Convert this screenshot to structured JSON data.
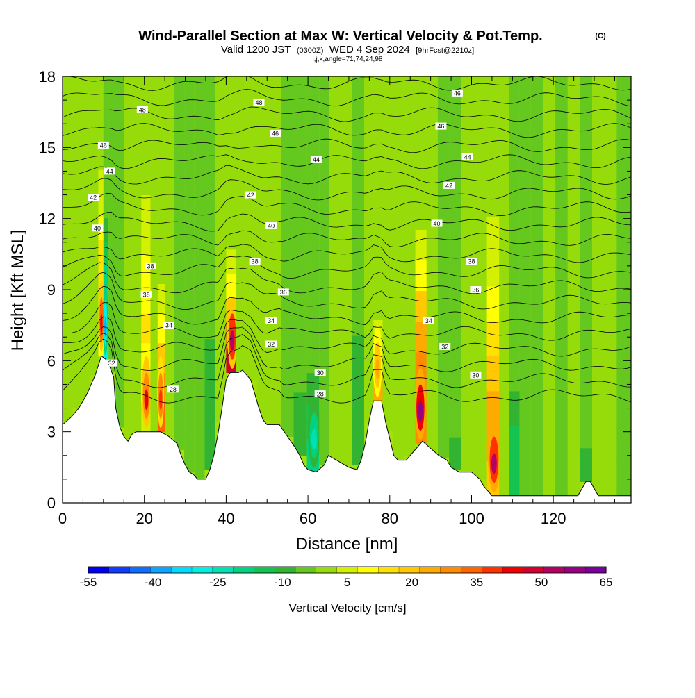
{
  "chart_data": {
    "type": "heatmap",
    "title": "Wind-Parallel Section at Max W: Vertical Velocity & Pot.Temp.",
    "title_mark": "(C)",
    "subtitle": {
      "valid": "Valid 1200 JST",
      "utc": "(0300Z)",
      "date": "WED 4 Sep 2024",
      "forecast": "[9hrFcst@2210z]"
    },
    "info": "i,j,k,angle=71,74,24,98",
    "xlabel": "Distance [nm]",
    "ylabel": "Height [Kft MSL]",
    "xlim": [
      0,
      139
    ],
    "ylim": [
      0,
      18
    ],
    "x_ticks": [
      0,
      20,
      40,
      60,
      80,
      100,
      120
    ],
    "y_ticks": [
      0,
      3,
      6,
      9,
      12,
      15,
      18
    ],
    "grid": false,
    "colorbar": {
      "label": "Vertical Velocity [cm/s]",
      "tick_labels": [
        "-55",
        "-40",
        "-25",
        "-10",
        "5",
        "20",
        "35",
        "50",
        "65"
      ],
      "levels": [
        -55,
        -50,
        -45,
        -40,
        -35,
        -30,
        -25,
        -20,
        -15,
        -10,
        -5,
        0,
        5,
        10,
        15,
        20,
        25,
        30,
        35,
        40,
        45,
        50,
        55,
        60,
        65
      ],
      "colors": [
        "#0000f0",
        "#0f3cff",
        "#0f6eff",
        "#0aa5ff",
        "#00dcff",
        "#00f0e1",
        "#00e1b4",
        "#00d282",
        "#14c350",
        "#32b432",
        "#64c81e",
        "#96dc0a",
        "#d2f000",
        "#ffff00",
        "#ffe100",
        "#ffc800",
        "#ffaa00",
        "#ff8c00",
        "#ff6400",
        "#ff3200",
        "#f00000",
        "#d20032",
        "#b40064",
        "#960082",
        "#78009b"
      ]
    },
    "w_columns": [
      {
        "x": 1,
        "w": 3
      },
      {
        "x": 4,
        "w": 3.5
      },
      {
        "x": 5.5,
        "w": 0
      },
      {
        "x": 8,
        "w": 9
      },
      {
        "x": 9.5,
        "w": 48
      },
      {
        "x": 10.5,
        "w": -38
      },
      {
        "x": 12,
        "w": -5
      },
      {
        "x": 14,
        "w": -2
      },
      {
        "x": 16,
        "w": 4
      },
      {
        "x": 18,
        "w": 2
      },
      {
        "x": 20.5,
        "w": 45
      },
      {
        "x": 22.5,
        "w": 6
      },
      {
        "x": 24,
        "w": 40
      },
      {
        "x": 26,
        "w": 0
      },
      {
        "x": 28.5,
        "w": -5
      },
      {
        "x": 31,
        "w": -15
      },
      {
        "x": 33.5,
        "w": -5
      },
      {
        "x": 36,
        "w": -12
      },
      {
        "x": 38.5,
        "w": 2
      },
      {
        "x": 41.5,
        "w": 55
      },
      {
        "x": 43.5,
        "w": 6
      },
      {
        "x": 46,
        "w": 3
      },
      {
        "x": 49,
        "w": 0
      },
      {
        "x": 52,
        "w": 4
      },
      {
        "x": 55,
        "w": -3
      },
      {
        "x": 58,
        "w": -8
      },
      {
        "x": 61.5,
        "w": -22
      },
      {
        "x": 64,
        "w": -5
      },
      {
        "x": 66.5,
        "w": 6
      },
      {
        "x": 69,
        "w": 10
      },
      {
        "x": 72.5,
        "w": -12
      },
      {
        "x": 75,
        "w": 5
      },
      {
        "x": 77,
        "w": 28
      },
      {
        "x": 79.5,
        "w": 4
      },
      {
        "x": 82,
        "w": 2
      },
      {
        "x": 85,
        "w": 12
      },
      {
        "x": 87.5,
        "w": 62
      },
      {
        "x": 90.5,
        "w": 0
      },
      {
        "x": 93,
        "w": -4
      },
      {
        "x": 96,
        "w": -8
      },
      {
        "x": 99,
        "w": 6
      },
      {
        "x": 102,
        "w": 0
      },
      {
        "x": 105.5,
        "w": 58
      },
      {
        "x": 108,
        "w": 4
      },
      {
        "x": 110.5,
        "w": -14
      },
      {
        "x": 113,
        "w": -3
      },
      {
        "x": 116,
        "w": -8
      },
      {
        "x": 119,
        "w": 2
      },
      {
        "x": 122,
        "w": -2
      },
      {
        "x": 125,
        "w": 3
      },
      {
        "x": 128,
        "w": -6
      },
      {
        "x": 131,
        "w": 0
      },
      {
        "x": 134,
        "w": 5
      },
      {
        "x": 137,
        "w": -3
      }
    ],
    "terrain": [
      [
        0,
        3.3
      ],
      [
        2,
        3.6
      ],
      [
        4,
        4.0
      ],
      [
        6,
        4.6
      ],
      [
        8,
        5.4
      ],
      [
        9.5,
        6.2
      ],
      [
        11,
        6.0
      ],
      [
        12.5,
        5.3
      ],
      [
        13,
        4.0
      ],
      [
        14,
        3.2
      ],
      [
        15,
        2.8
      ],
      [
        16,
        2.6
      ],
      [
        17,
        2.9
      ],
      [
        18,
        3.0
      ],
      [
        20,
        3.0
      ],
      [
        22,
        3.0
      ],
      [
        24,
        3.0
      ],
      [
        26,
        2.8
      ],
      [
        28,
        2.5
      ],
      [
        29,
        2.0
      ],
      [
        30,
        1.6
      ],
      [
        31,
        1.3
      ],
      [
        32,
        1.2
      ],
      [
        33,
        1.0
      ],
      [
        35,
        1.0
      ],
      [
        36,
        1.4
      ],
      [
        37,
        2.0
      ],
      [
        38,
        2.9
      ],
      [
        39,
        4.0
      ],
      [
        40,
        5.2
      ],
      [
        41,
        5.5
      ],
      [
        43,
        5.5
      ],
      [
        44,
        5.6
      ],
      [
        46,
        5.2
      ],
      [
        47,
        4.6
      ],
      [
        48,
        4.0
      ],
      [
        49,
        3.5
      ],
      [
        50,
        3.3
      ],
      [
        53,
        3.3
      ],
      [
        55,
        2.8
      ],
      [
        57,
        2.3
      ],
      [
        58,
        2.0
      ],
      [
        59,
        1.6
      ],
      [
        60,
        1.4
      ],
      [
        62,
        1.3
      ],
      [
        64,
        1.6
      ],
      [
        65,
        2.0
      ],
      [
        67,
        1.8
      ],
      [
        69,
        1.6
      ],
      [
        70,
        1.5
      ],
      [
        72,
        1.4
      ],
      [
        73,
        1.8
      ],
      [
        74,
        2.5
      ],
      [
        75,
        3.5
      ],
      [
        76,
        4.3
      ],
      [
        78,
        4.3
      ],
      [
        79,
        3.4
      ],
      [
        80,
        2.7
      ],
      [
        81,
        2.0
      ],
      [
        82,
        1.8
      ],
      [
        84,
        1.8
      ],
      [
        86,
        2.2
      ],
      [
        88,
        2.6
      ],
      [
        90,
        2.3
      ],
      [
        92,
        2.0
      ],
      [
        94,
        1.8
      ],
      [
        95,
        1.5
      ],
      [
        97,
        1.3
      ],
      [
        100,
        1.3
      ],
      [
        102,
        1.0
      ],
      [
        103,
        0.7
      ],
      [
        104,
        0.5
      ],
      [
        105,
        0.3
      ],
      [
        126,
        0.3
      ],
      [
        127,
        0.6
      ],
      [
        128,
        0.9
      ],
      [
        129,
        0.9
      ],
      [
        131,
        0.3
      ],
      [
        133,
        0.3
      ],
      [
        136,
        0.3
      ],
      [
        139,
        0.3
      ]
    ],
    "theta_contours": {
      "levels": [
        28,
        29,
        30,
        31,
        32,
        33,
        34,
        35,
        36,
        37,
        38,
        39,
        40,
        41,
        42,
        43,
        44,
        45,
        46,
        47,
        48
      ],
      "labels": [
        {
          "x": 27,
          "y": 4.8,
          "text": "28"
        },
        {
          "x": 63,
          "y": 4.6,
          "text": "28"
        },
        {
          "x": 12,
          "y": 5.9,
          "text": "32"
        },
        {
          "x": 51,
          "y": 6.7,
          "text": "32"
        },
        {
          "x": 93.5,
          "y": 6.6,
          "text": "32"
        },
        {
          "x": 63,
          "y": 5.5,
          "text": "30"
        },
        {
          "x": 101,
          "y": 5.4,
          "text": "30"
        },
        {
          "x": 26,
          "y": 7.5,
          "text": "34"
        },
        {
          "x": 51,
          "y": 7.7,
          "text": "34"
        },
        {
          "x": 89.5,
          "y": 7.7,
          "text": "34"
        },
        {
          "x": 20.5,
          "y": 8.8,
          "text": "36"
        },
        {
          "x": 54,
          "y": 8.9,
          "text": "36"
        },
        {
          "x": 101,
          "y": 9.0,
          "text": "36"
        },
        {
          "x": 21.5,
          "y": 10.0,
          "text": "38"
        },
        {
          "x": 47,
          "y": 10.2,
          "text": "38"
        },
        {
          "x": 100,
          "y": 10.2,
          "text": "38"
        },
        {
          "x": 8.5,
          "y": 11.6,
          "text": "40"
        },
        {
          "x": 51,
          "y": 11.7,
          "text": "40"
        },
        {
          "x": 91.5,
          "y": 11.8,
          "text": "40"
        },
        {
          "x": 7.5,
          "y": 12.9,
          "text": "42"
        },
        {
          "x": 46,
          "y": 13.0,
          "text": "42"
        },
        {
          "x": 94.5,
          "y": 13.4,
          "text": "42"
        },
        {
          "x": 11.5,
          "y": 14.0,
          "text": "44"
        },
        {
          "x": 62,
          "y": 14.5,
          "text": "44"
        },
        {
          "x": 99,
          "y": 14.6,
          "text": "44"
        },
        {
          "x": 10,
          "y": 15.1,
          "text": "46"
        },
        {
          "x": 52,
          "y": 15.6,
          "text": "46"
        },
        {
          "x": 92.5,
          "y": 15.9,
          "text": "46"
        },
        {
          "x": 19.5,
          "y": 16.6,
          "text": "48"
        },
        {
          "x": 48,
          "y": 16.9,
          "text": "48"
        },
        {
          "x": 96.5,
          "y": 17.3,
          "text": "46"
        }
      ]
    }
  }
}
